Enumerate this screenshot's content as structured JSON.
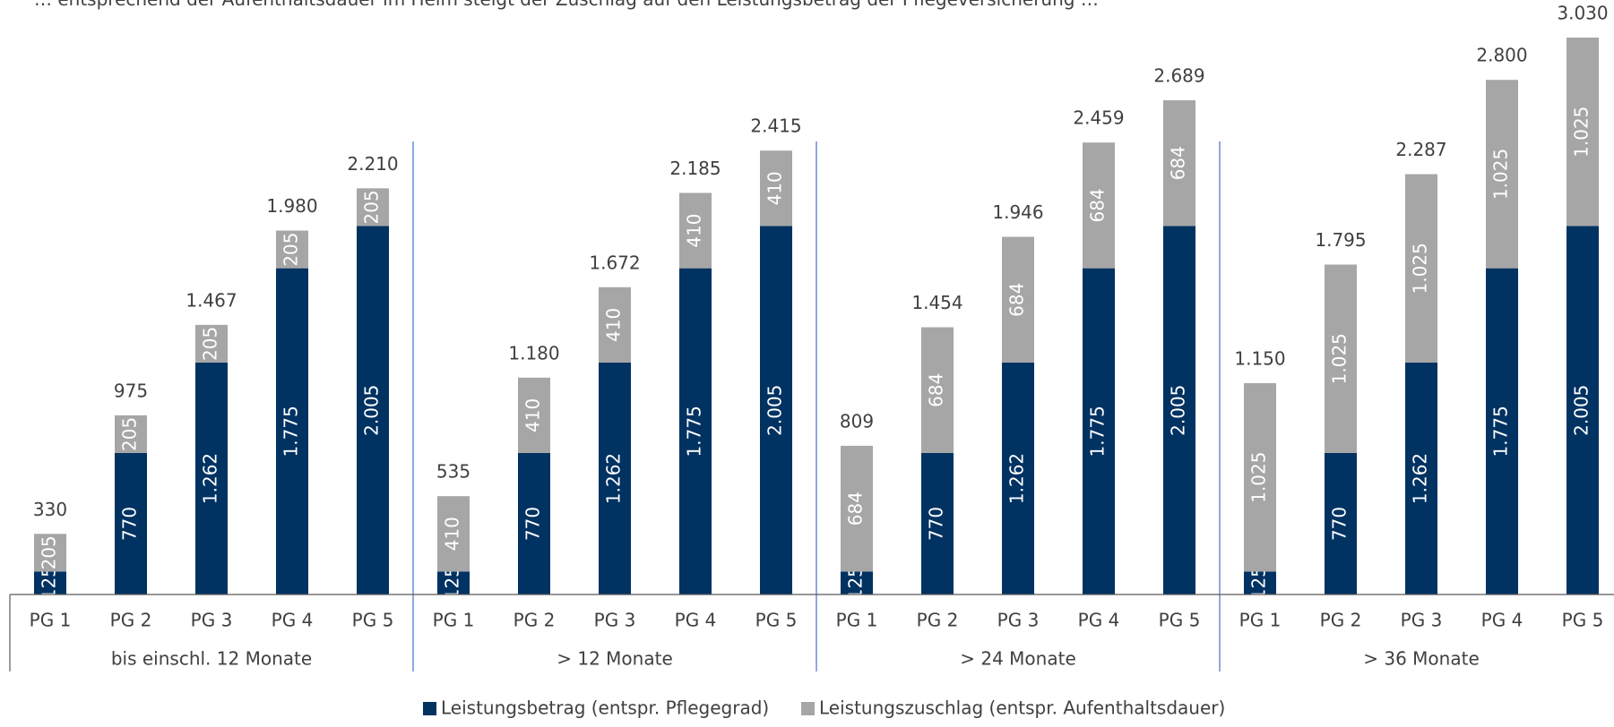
{
  "chart_data": {
    "type": "bar",
    "stacked": true,
    "title": "… entsprechend der Aufenthaltsdauer im Heim steigt der Zuschlag auf den Leistungsbetrag der Pflegeversicherung …",
    "groups": [
      "bis einschl. 12 Monate",
      "> 12 Monate",
      "> 24 Monate",
      "> 36 Monate"
    ],
    "categories": [
      "PG 1",
      "PG 2",
      "PG 3",
      "PG 4",
      "PG 5"
    ],
    "series": [
      {
        "name": "Leistungsbetrag (entspr. Pflegegrad)",
        "color": "#003262",
        "values": [
          [
            125,
            770,
            1262,
            1775,
            2005
          ],
          [
            125,
            770,
            1262,
            1775,
            2005
          ],
          [
            125,
            770,
            1262,
            1775,
            2005
          ],
          [
            125,
            770,
            1262,
            1775,
            2005
          ]
        ],
        "labels": [
          [
            "125",
            "770",
            "1.262",
            "1.775",
            "2.005"
          ],
          [
            "125",
            "770",
            "1.262",
            "1.775",
            "2.005"
          ],
          [
            "125",
            "770",
            "1.262",
            "1.775",
            "2.005"
          ],
          [
            "125",
            "770",
            "1.262",
            "1.775",
            "2.005"
          ]
        ]
      },
      {
        "name": "Leistungszuschlag (entspr. Aufenthaltsdauer)",
        "color": "#a6a6a6",
        "values": [
          [
            205,
            205,
            205,
            205,
            205
          ],
          [
            410,
            410,
            410,
            410,
            410
          ],
          [
            684,
            684,
            684,
            684,
            684
          ],
          [
            1025,
            1025,
            1025,
            1025,
            1025
          ]
        ],
        "labels": [
          [
            "205",
            "205",
            "205",
            "205",
            "205"
          ],
          [
            "410",
            "410",
            "410",
            "410",
            "410"
          ],
          [
            "684",
            "684",
            "684",
            "684",
            "684"
          ],
          [
            "1.025",
            "1.025",
            "1.025",
            "1.025",
            "1.025"
          ]
        ]
      }
    ],
    "totals": [
      [
        "330",
        "975",
        "1.467",
        "1.980",
        "2.210"
      ],
      [
        "535",
        "1.180",
        "1.672",
        "2.185",
        "2.415"
      ],
      [
        "809",
        "1.454",
        "1.946",
        "2.459",
        "2.689"
      ],
      [
        "1.150",
        "1.795",
        "2.287",
        "2.800",
        "3.030"
      ]
    ],
    "ylim": [
      0,
      3030
    ],
    "grid": false,
    "legend_position": "bottom"
  }
}
